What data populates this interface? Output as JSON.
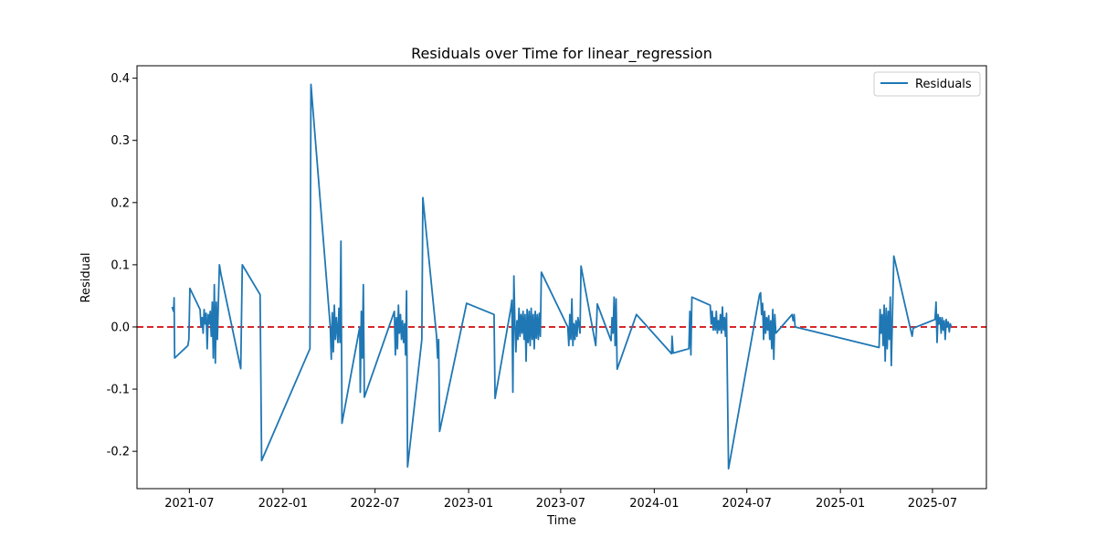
{
  "chart_data": {
    "type": "line",
    "title": "Residuals over Time for linear_regression",
    "xlabel": "Time",
    "ylabel": "Residual",
    "x_axis_type": "date",
    "xlim": [
      "2021-03-20",
      "2025-10-15"
    ],
    "ylim": [
      -0.26,
      0.42
    ],
    "x_ticks": [
      "2021-07",
      "2022-01",
      "2022-07",
      "2023-01",
      "2023-07",
      "2024-01",
      "2024-07",
      "2025-01",
      "2025-07"
    ],
    "y_ticks": [
      -0.2,
      -0.1,
      0.0,
      0.1,
      0.2,
      0.3,
      0.4
    ],
    "grid": false,
    "legend": {
      "position": "top-right",
      "entries": [
        "Residuals"
      ]
    },
    "reference_line": {
      "y": 0.0,
      "color": "#d62728",
      "style": "dashed"
    },
    "colors": {
      "series": "#1f77b4",
      "reference": "#d62728"
    },
    "series": [
      {
        "name": "Residuals",
        "points": [
          [
            "2021-05-28",
            0.032
          ],
          [
            "2021-05-31",
            0.025
          ],
          [
            "2021-06-01",
            0.047
          ],
          [
            "2021-06-02",
            -0.05
          ],
          [
            "2021-06-28",
            -0.03
          ],
          [
            "2021-06-30",
            -0.02
          ],
          [
            "2021-07-02",
            0.062
          ],
          [
            "2021-07-22",
            0.028
          ],
          [
            "2021-07-24",
            0.0
          ],
          [
            "2021-07-26",
            0.015
          ],
          [
            "2021-07-28",
            -0.01
          ],
          [
            "2021-07-30",
            0.028
          ],
          [
            "2021-08-01",
            0.005
          ],
          [
            "2021-08-03",
            0.022
          ],
          [
            "2021-08-05",
            -0.035
          ],
          [
            "2021-08-07",
            0.02
          ],
          [
            "2021-08-09",
            0.005
          ],
          [
            "2021-08-11",
            0.025
          ],
          [
            "2021-08-13",
            -0.015
          ],
          [
            "2021-08-15",
            0.04
          ],
          [
            "2021-08-17",
            -0.05
          ],
          [
            "2021-08-19",
            0.068
          ],
          [
            "2021-08-21",
            -0.058
          ],
          [
            "2021-08-23",
            0.04
          ],
          [
            "2021-08-25",
            -0.02
          ],
          [
            "2021-08-29",
            0.1
          ],
          [
            "2021-09-01",
            0.085
          ],
          [
            "2021-10-10",
            -0.067
          ],
          [
            "2021-10-13",
            0.1
          ],
          [
            "2021-11-17",
            0.052
          ],
          [
            "2021-11-20",
            -0.215
          ],
          [
            "2022-02-23",
            -0.035
          ],
          [
            "2022-02-25",
            0.39
          ],
          [
            "2022-04-04",
            0.0
          ],
          [
            "2022-04-06",
            -0.052
          ],
          [
            "2022-04-08",
            0.023
          ],
          [
            "2022-04-10",
            -0.04
          ],
          [
            "2022-04-12",
            0.035
          ],
          [
            "2022-04-14",
            -0.02
          ],
          [
            "2022-04-16",
            0.015
          ],
          [
            "2022-04-19",
            -0.025
          ],
          [
            "2022-04-21",
            0.03
          ],
          [
            "2022-04-23",
            -0.025
          ],
          [
            "2022-04-25",
            0.138
          ],
          [
            "2022-04-27",
            -0.155
          ],
          [
            "2022-06-01",
            0.0
          ],
          [
            "2022-06-02",
            -0.105
          ],
          [
            "2022-06-04",
            0.025
          ],
          [
            "2022-06-06",
            -0.05
          ],
          [
            "2022-06-08",
            0.068
          ],
          [
            "2022-06-10",
            -0.113
          ],
          [
            "2022-08-08",
            0.025
          ],
          [
            "2022-08-10",
            -0.045
          ],
          [
            "2022-08-12",
            0.015
          ],
          [
            "2022-08-14",
            -0.035
          ],
          [
            "2022-08-16",
            0.035
          ],
          [
            "2022-08-18",
            -0.01
          ],
          [
            "2022-08-20",
            0.02
          ],
          [
            "2022-08-22",
            -0.02
          ],
          [
            "2022-08-24",
            0.01
          ],
          [
            "2022-08-26",
            -0.025
          ],
          [
            "2022-08-28",
            0.005
          ],
          [
            "2022-08-30",
            -0.045
          ],
          [
            "2022-09-01",
            0.058
          ],
          [
            "2022-09-03",
            -0.225
          ],
          [
            "2022-09-29",
            -0.035
          ],
          [
            "2022-10-01",
            -0.02
          ],
          [
            "2022-10-03",
            0.208
          ],
          [
            "2022-10-30",
            -0.015
          ],
          [
            "2022-11-01",
            -0.05
          ],
          [
            "2022-11-03",
            -0.02
          ],
          [
            "2022-11-05",
            -0.168
          ],
          [
            "2022-12-28",
            0.038
          ],
          [
            "2023-02-20",
            0.02
          ],
          [
            "2023-02-22",
            -0.115
          ],
          [
            "2023-03-25",
            0.03
          ],
          [
            "2023-03-27",
            0.043
          ],
          [
            "2023-03-29",
            -0.105
          ],
          [
            "2023-03-31",
            0.082
          ],
          [
            "2023-04-02",
            0.005
          ],
          [
            "2023-04-04",
            -0.04
          ],
          [
            "2023-04-06",
            0.01
          ],
          [
            "2023-04-08",
            -0.02
          ],
          [
            "2023-04-10",
            0.03
          ],
          [
            "2023-04-12",
            -0.015
          ],
          [
            "2023-04-14",
            0.02
          ],
          [
            "2023-04-16",
            -0.01
          ],
          [
            "2023-04-18",
            0.025
          ],
          [
            "2023-04-20",
            -0.02
          ],
          [
            "2023-04-22",
            0.02
          ],
          [
            "2023-04-24",
            -0.055
          ],
          [
            "2023-04-26",
            0.028
          ],
          [
            "2023-04-28",
            -0.025
          ],
          [
            "2023-04-30",
            0.025
          ],
          [
            "2023-05-02",
            -0.03
          ],
          [
            "2023-05-04",
            0.03
          ],
          [
            "2023-05-06",
            -0.02
          ],
          [
            "2023-05-08",
            0.02
          ],
          [
            "2023-05-10",
            -0.035
          ],
          [
            "2023-05-12",
            0.025
          ],
          [
            "2023-05-14",
            -0.018
          ],
          [
            "2023-05-16",
            0.02
          ],
          [
            "2023-05-18",
            -0.02
          ],
          [
            "2023-05-20",
            0.022
          ],
          [
            "2023-05-22",
            -0.015
          ],
          [
            "2023-05-24",
            0.088
          ],
          [
            "2023-07-15",
            0.0
          ],
          [
            "2023-07-17",
            -0.03
          ],
          [
            "2023-07-19",
            0.02
          ],
          [
            "2023-07-21",
            -0.02
          ],
          [
            "2023-07-23",
            0.045
          ],
          [
            "2023-07-25",
            -0.03
          ],
          [
            "2023-07-27",
            0.005
          ],
          [
            "2023-07-29",
            -0.02
          ],
          [
            "2023-07-31",
            0.01
          ],
          [
            "2023-08-02",
            -0.015
          ],
          [
            "2023-08-04",
            0.015
          ],
          [
            "2023-08-08",
            -0.01
          ],
          [
            "2023-08-10",
            0.098
          ],
          [
            "2023-09-08",
            -0.03
          ],
          [
            "2023-09-11",
            0.037
          ],
          [
            "2023-10-08",
            -0.022
          ],
          [
            "2023-10-10",
            0.015
          ],
          [
            "2023-10-12",
            -0.01
          ],
          [
            "2023-10-14",
            0.048
          ],
          [
            "2023-10-16",
            -0.03
          ],
          [
            "2023-10-18",
            0.045
          ],
          [
            "2023-10-20",
            -0.068
          ],
          [
            "2023-11-27",
            0.02
          ],
          [
            "2024-02-04",
            -0.043
          ],
          [
            "2024-02-05",
            -0.015
          ],
          [
            "2024-02-07",
            -0.042
          ],
          [
            "2024-03-09",
            -0.035
          ],
          [
            "2024-03-11",
            0.025
          ],
          [
            "2024-03-13",
            -0.045
          ],
          [
            "2024-03-15",
            0.048
          ],
          [
            "2024-04-20",
            0.035
          ],
          [
            "2024-04-22",
            0.005
          ],
          [
            "2024-04-24",
            0.025
          ],
          [
            "2024-04-26",
            -0.005
          ],
          [
            "2024-04-28",
            0.015
          ],
          [
            "2024-04-30",
            -0.005
          ],
          [
            "2024-05-02",
            0.025
          ],
          [
            "2024-05-04",
            -0.01
          ],
          [
            "2024-05-06",
            0.01
          ],
          [
            "2024-05-08",
            -0.005
          ],
          [
            "2024-05-10",
            0.02
          ],
          [
            "2024-05-12",
            -0.01
          ],
          [
            "2024-05-14",
            0.032
          ],
          [
            "2024-05-16",
            -0.005
          ],
          [
            "2024-05-18",
            0.015
          ],
          [
            "2024-05-20",
            -0.015
          ],
          [
            "2024-05-22",
            0.022
          ],
          [
            "2024-05-26",
            -0.228
          ],
          [
            "2024-07-26",
            0.052
          ],
          [
            "2024-07-28",
            0.055
          ],
          [
            "2024-07-30",
            0.02
          ],
          [
            "2024-08-01",
            0.038
          ],
          [
            "2024-08-03",
            -0.02
          ],
          [
            "2024-08-05",
            0.025
          ],
          [
            "2024-08-07",
            -0.01
          ],
          [
            "2024-08-09",
            0.015
          ],
          [
            "2024-08-11",
            -0.005
          ],
          [
            "2024-08-13",
            0.018
          ],
          [
            "2024-08-15",
            -0.02
          ],
          [
            "2024-08-17",
            0.01
          ],
          [
            "2024-08-19",
            -0.035
          ],
          [
            "2024-08-21",
            0.028
          ],
          [
            "2024-08-23",
            -0.052
          ],
          [
            "2024-08-25",
            0.02
          ],
          [
            "2024-08-27",
            -0.01
          ],
          [
            "2024-09-28",
            0.02
          ],
          [
            "2024-09-30",
            0.01
          ],
          [
            "2024-10-02",
            0.02
          ],
          [
            "2024-10-04",
            0.0
          ],
          [
            "2025-03-18",
            -0.033
          ],
          [
            "2025-03-20",
            0.028
          ],
          [
            "2025-03-22",
            -0.01
          ],
          [
            "2025-03-24",
            0.02
          ],
          [
            "2025-03-26",
            -0.03
          ],
          [
            "2025-03-28",
            0.035
          ],
          [
            "2025-03-30",
            -0.055
          ],
          [
            "2025-04-01",
            0.03
          ],
          [
            "2025-04-03",
            -0.035
          ],
          [
            "2025-04-05",
            0.025
          ],
          [
            "2025-04-07",
            -0.02
          ],
          [
            "2025-04-09",
            0.048
          ],
          [
            "2025-04-11",
            -0.062
          ],
          [
            "2025-04-16",
            0.114
          ],
          [
            "2025-05-20",
            -0.008
          ],
          [
            "2025-05-22",
            -0.015
          ],
          [
            "2025-05-24",
            -0.002
          ],
          [
            "2025-07-06",
            0.012
          ],
          [
            "2025-07-08",
            0.04
          ],
          [
            "2025-07-10",
            -0.025
          ],
          [
            "2025-07-12",
            0.02
          ],
          [
            "2025-07-14",
            0.005
          ],
          [
            "2025-07-16",
            0.015
          ],
          [
            "2025-07-18",
            -0.01
          ],
          [
            "2025-07-20",
            0.015
          ],
          [
            "2025-07-22",
            -0.005
          ],
          [
            "2025-07-24",
            0.01
          ],
          [
            "2025-07-26",
            -0.02
          ],
          [
            "2025-07-28",
            0.012
          ],
          [
            "2025-07-30",
            0.0
          ],
          [
            "2025-08-01",
            0.008
          ],
          [
            "2025-08-03",
            -0.008
          ],
          [
            "2025-08-05",
            0.005
          ],
          [
            "2025-08-07",
            0.0
          ]
        ]
      }
    ]
  }
}
